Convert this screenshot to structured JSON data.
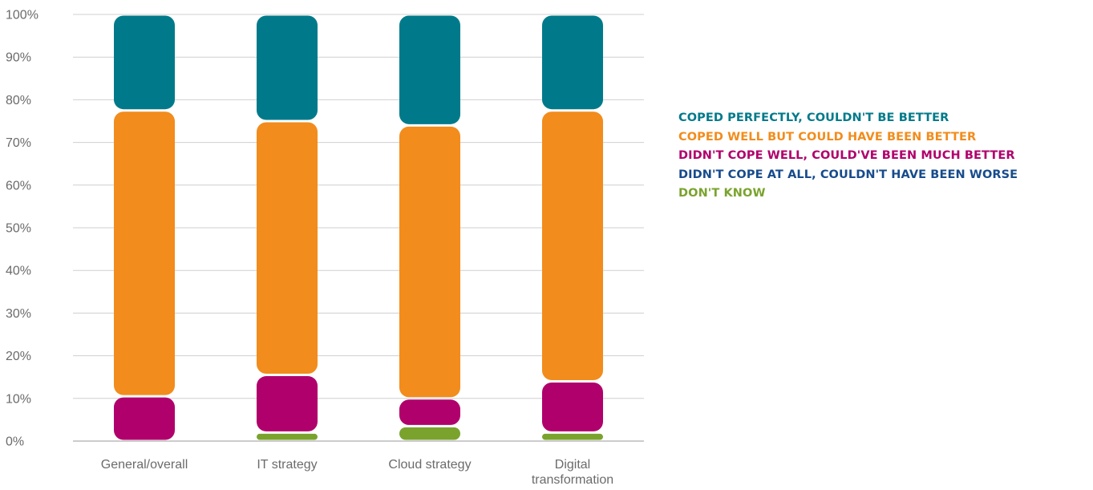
{
  "chart_data": {
    "type": "bar",
    "stacked": true,
    "categories": [
      "General/overall",
      "IT strategy",
      "Cloud strategy",
      "Digital\ntransformation"
    ],
    "series": [
      {
        "name": "DON'T KNOW",
        "color": "#7aa32e",
        "values": [
          0,
          2,
          3.5,
          2
        ]
      },
      {
        "name": "DIDN'T COPE AT ALL, COULDN'T HAVE BEEN WORSE",
        "color": "#174b8c",
        "values": [
          0,
          0,
          0,
          0
        ]
      },
      {
        "name": "DIDN'T COPE WELL, COULD'VE BEEN MUCH BETTER",
        "color": "#b0006b",
        "values": [
          10.5,
          13.5,
          6.5,
          12
        ]
      },
      {
        "name": "COPED WELL BUT COULD HAVE BEEN BETTER",
        "color": "#f28c1c",
        "values": [
          67,
          59.5,
          64,
          63.5
        ]
      },
      {
        "name": "COPED PERFECTLY, COULDN'T BE BETTER",
        "color": "#007a8a",
        "values": [
          22.5,
          25,
          26,
          22.5
        ]
      }
    ],
    "legend_order": [
      4,
      3,
      2,
      1,
      0
    ],
    "yticks": [
      "0%",
      "10%",
      "20%",
      "30%",
      "40%",
      "50%",
      "60%",
      "70%",
      "80%",
      "90%",
      "100%"
    ],
    "ylim": [
      0,
      100
    ],
    "grid": true,
    "legend_position": "right",
    "title": "",
    "xlabel": "",
    "ylabel": ""
  }
}
